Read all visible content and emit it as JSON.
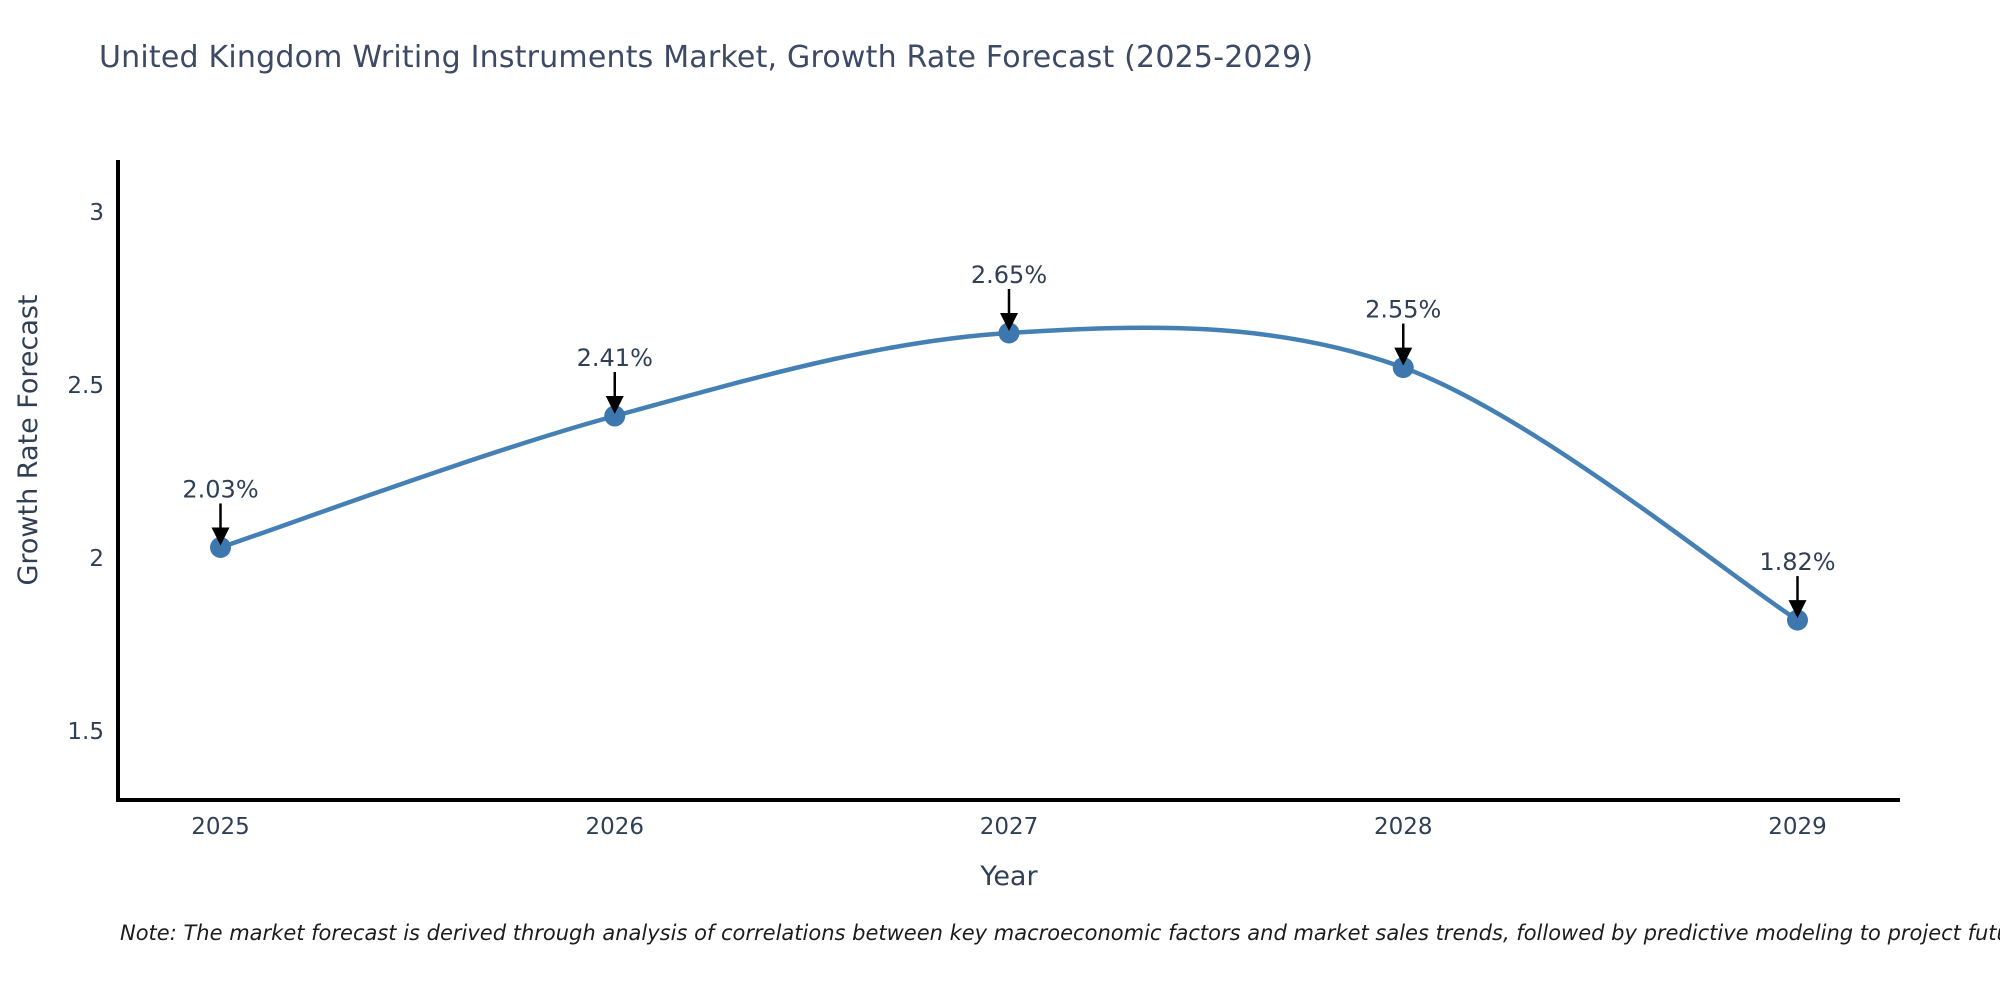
{
  "header": {
    "title": "United Kingdom Writing Instruments Market, Growth Rate Forecast (2025-2029)"
  },
  "footnote": "Note: The market forecast is derived through analysis of correlations between key macroeconomic factors and market sales trends, followed by predictive modeling to project future sales",
  "chart_data": {
    "type": "line",
    "title": "United Kingdom Writing Instruments Market, Growth Rate Forecast (2025-2029)",
    "x": [
      2025,
      2026,
      2027,
      2028,
      2029
    ],
    "series": [
      {
        "name": "Growth Rate Forecast",
        "values": [
          2.03,
          2.41,
          2.65,
          2.55,
          1.82
        ]
      }
    ],
    "point_labels": [
      "2.03%",
      "2.41%",
      "2.65%",
      "2.55%",
      "1.82%"
    ],
    "xlabel": "Year",
    "ylabel": "Growth Rate Forecast",
    "xticks": [
      "2025",
      "2026",
      "2027",
      "2028",
      "2029"
    ],
    "xtick_values": [
      2025,
      2026,
      2027,
      2028,
      2029
    ],
    "yticks": [
      "3",
      "2.5",
      "2",
      "1.5"
    ],
    "ytick_values": [
      3,
      2.5,
      2,
      1.5
    ],
    "xlim": [
      2024.74,
      2029.26
    ],
    "ylim": [
      1.3,
      3.15
    ],
    "grid": false,
    "legend": "none",
    "line_shape": "spline",
    "annotation_arrows": true,
    "colors": {
      "line": "#4580b4",
      "marker": "#3d77ae",
      "arrow": "#000000",
      "chart_text": "#2f3f55",
      "title_text": "#3d4a66",
      "axis_line": "#000000",
      "note_text": "#1c1c1c"
    }
  }
}
